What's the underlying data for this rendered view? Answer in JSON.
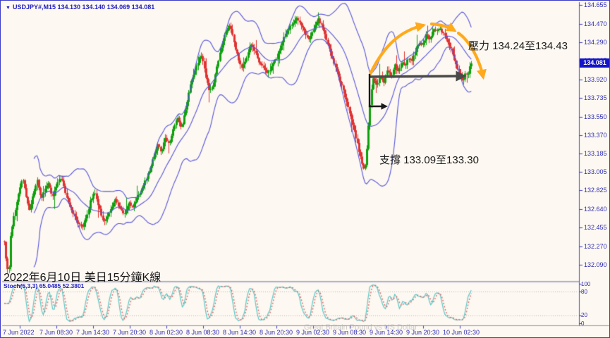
{
  "header": {
    "dropdown_icon": "▼",
    "symbol": "USDJPY#,M15",
    "open": "134.130",
    "high": "134.140",
    "low": "134.069",
    "close": "134.081"
  },
  "price_axis": {
    "labels": [
      "134.655",
      "134.470",
      "134.290",
      "134.105",
      "133.920",
      "133.735",
      "133.550",
      "133.370",
      "133.185",
      "133.005",
      "132.825",
      "132.640",
      "132.455",
      "132.270",
      "132.090"
    ],
    "current_price": "134.081"
  },
  "time_axis": {
    "labels": [
      "7 Jun 2022",
      "7 Jun 08:30",
      "7 Jun 14:30",
      "7 Jun 20:30",
      "8 Jun 02:30",
      "8 Jun 08:30",
      "8 Jun 14:30",
      "8 Jun 20:30",
      "9 Jun 02:30",
      "9 Jun 08:30",
      "9 Jun 14:30",
      "9 Jun 20:30",
      "10 Jun 02:30"
    ]
  },
  "stoch_panel": {
    "label": "Stoch(5,3,3)",
    "k_value": "65.0485",
    "d_value": "52.3801",
    "scale": [
      "100",
      "80",
      "20",
      "0"
    ],
    "upper_level": 80,
    "lower_level": 20
  },
  "annotations": {
    "resistance": "壓力 134.24至134.43",
    "support": "支撐 133.09至133.30",
    "caption": "2022年6月10日 美日15分鐘K線",
    "watermark": "Great Britain Pound vs US Dollar"
  },
  "colors": {
    "background": "#fdf8f1",
    "frame": "#3c3cc8",
    "axis_text": "#2d2db4",
    "title_text": "#2121c6",
    "candle_up": "#0ca00c",
    "candle_down": "#e03232",
    "bollinger": "#5555dd",
    "stoch_k": "#58c8c8",
    "stoch_d": "#e06868",
    "grid_dotted": "#b8b8b8",
    "price_badge_bg": "#1414c8",
    "annotation_orange": "#ffaa1c",
    "arrow_gray": "#4a4a4a",
    "arrow_black": "#1a1a1a"
  },
  "chart_data": {
    "type": "candlestick",
    "instrument": "USDJPY",
    "timeframe": "M15",
    "title": "USDJPY#,M15 134.130 134.140 134.069 134.081",
    "y_axis_range": [
      132.09,
      134.655
    ],
    "indicators": [
      {
        "name": "Bollinger Bands",
        "period": 20,
        "deviation": 2
      },
      {
        "name": "Stochastic",
        "params": [
          5,
          3,
          3
        ],
        "k": 65.0485,
        "d": 52.3801
      }
    ],
    "support_zone": [
      133.09,
      133.3
    ],
    "resistance_zone": [
      134.24,
      134.43
    ],
    "price_path": [
      [
        5,
        132.32
      ],
      [
        8,
        132.1
      ],
      [
        11,
        131.99
      ],
      [
        14,
        132.38
      ],
      [
        18,
        132.55
      ],
      [
        22,
        132.7
      ],
      [
        27,
        132.86
      ],
      [
        31,
        132.93
      ],
      [
        36,
        132.76
      ],
      [
        41,
        132.62
      ],
      [
        46,
        132.8
      ],
      [
        52,
        132.94
      ],
      [
        57,
        132.72
      ],
      [
        62,
        132.85
      ],
      [
        67,
        132.9
      ],
      [
        73,
        132.76
      ],
      [
        79,
        132.88
      ],
      [
        85,
        132.95
      ],
      [
        91,
        132.82
      ],
      [
        97,
        132.68
      ],
      [
        103,
        132.58
      ],
      [
        109,
        132.5
      ],
      [
        115,
        132.46
      ],
      [
        121,
        132.56
      ],
      [
        127,
        132.72
      ],
      [
        133,
        132.8
      ],
      [
        139,
        132.66
      ],
      [
        145,
        132.52
      ],
      [
        151,
        132.56
      ],
      [
        157,
        132.66
      ],
      [
        163,
        132.74
      ],
      [
        169,
        132.64
      ],
      [
        175,
        132.6
      ],
      [
        181,
        132.7
      ],
      [
        187,
        132.66
      ],
      [
        193,
        132.74
      ],
      [
        199,
        132.82
      ],
      [
        205,
        132.92
      ],
      [
        211,
        133.02
      ],
      [
        217,
        133.16
      ],
      [
        222,
        133.28
      ],
      [
        227,
        133.2
      ],
      [
        233,
        133.33
      ],
      [
        239,
        133.28
      ],
      [
        245,
        133.45
      ],
      [
        251,
        133.55
      ],
      [
        256,
        133.44
      ],
      [
        262,
        133.63
      ],
      [
        268,
        133.85
      ],
      [
        274,
        134.0
      ],
      [
        280,
        134.1
      ],
      [
        285,
        134.17
      ],
      [
        290,
        133.95
      ],
      [
        296,
        133.79
      ],
      [
        302,
        133.9
      ],
      [
        308,
        134.1
      ],
      [
        314,
        134.28
      ],
      [
        320,
        134.42
      ],
      [
        325,
        134.47
      ],
      [
        330,
        134.3
      ],
      [
        336,
        134.14
      ],
      [
        342,
        134.04
      ],
      [
        348,
        134.14
      ],
      [
        354,
        134.27
      ],
      [
        360,
        134.2
      ],
      [
        366,
        134.1
      ],
      [
        372,
        134.03
      ],
      [
        378,
        133.98
      ],
      [
        384,
        134.05
      ],
      [
        390,
        134.12
      ],
      [
        396,
        134.22
      ],
      [
        402,
        134.34
      ],
      [
        408,
        134.42
      ],
      [
        414,
        134.48
      ],
      [
        420,
        134.52
      ],
      [
        426,
        134.46
      ],
      [
        432,
        134.36
      ],
      [
        438,
        134.32
      ],
      [
        444,
        134.43
      ],
      [
        450,
        134.51
      ],
      [
        456,
        134.44
      ],
      [
        462,
        134.3
      ],
      [
        468,
        134.16
      ],
      [
        474,
        134.06
      ],
      [
        480,
        133.93
      ],
      [
        486,
        133.8
      ],
      [
        492,
        133.65
      ],
      [
        498,
        133.5
      ],
      [
        504,
        133.33
      ],
      [
        509,
        133.18
      ],
      [
        513,
        133.06
      ],
      [
        516,
        133.01
      ],
      [
        519,
        133.25
      ],
      [
        522,
        133.55
      ],
      [
        525,
        133.8
      ],
      [
        528,
        133.94
      ],
      [
        533,
        133.84
      ],
      [
        538,
        133.97
      ],
      [
        543,
        133.88
      ],
      [
        548,
        134.03
      ],
      [
        553,
        133.94
      ],
      [
        558,
        134.07
      ],
      [
        563,
        133.99
      ],
      [
        568,
        134.1
      ],
      [
        573,
        134.04
      ],
      [
        578,
        134.14
      ],
      [
        583,
        134.09
      ],
      [
        588,
        134.21
      ],
      [
        593,
        134.29
      ],
      [
        598,
        134.26
      ],
      [
        603,
        134.36
      ],
      [
        608,
        134.32
      ],
      [
        613,
        134.42
      ],
      [
        618,
        134.4
      ],
      [
        623,
        134.42
      ],
      [
        628,
        134.37
      ],
      [
        633,
        134.3
      ],
      [
        638,
        134.23
      ],
      [
        643,
        134.12
      ],
      [
        648,
        134.02
      ],
      [
        652,
        133.94
      ],
      [
        656,
        133.9
      ],
      [
        659,
        134.0
      ],
      [
        662,
        133.96
      ],
      [
        665,
        134.04
      ],
      [
        668,
        134.08
      ]
    ]
  }
}
